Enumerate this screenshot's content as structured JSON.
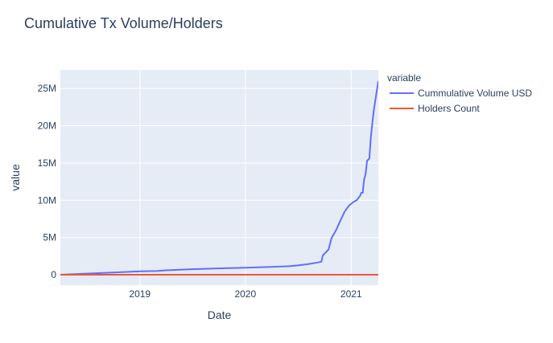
{
  "chart_data": {
    "type": "line",
    "title": "Cumulative Tx Volume/Holders",
    "xlabel": "Date",
    "ylabel": "value",
    "x_range": [
      "2018-04-01",
      "2021-04-05"
    ],
    "ylim": [
      -1400000,
      27500000
    ],
    "x_ticks": [
      {
        "date": "2019-01-01",
        "label": "2019"
      },
      {
        "date": "2020-01-01",
        "label": "2020"
      },
      {
        "date": "2021-01-01",
        "label": "2021"
      }
    ],
    "y_ticks": [
      {
        "value": 0,
        "label": "0"
      },
      {
        "value": 5000000,
        "label": "5M"
      },
      {
        "value": 10000000,
        "label": "10M"
      },
      {
        "value": 15000000,
        "label": "15M"
      },
      {
        "value": 20000000,
        "label": "20M"
      },
      {
        "value": 25000000,
        "label": "25M"
      }
    ],
    "grid": true,
    "legend": {
      "title": "variable",
      "placement": "right"
    },
    "series": [
      {
        "name": "Cummulative Volume USD",
        "color": "#636efa",
        "x": [
          "2018-04-01",
          "2018-07-01",
          "2018-10-01",
          "2019-01-01",
          "2019-03-01",
          "2019-04-01",
          "2019-07-01",
          "2019-10-01",
          "2020-01-01",
          "2020-04-01",
          "2020-06-01",
          "2020-07-01",
          "2020-08-01",
          "2020-09-01",
          "2020-09-20",
          "2020-09-25",
          "2020-10-15",
          "2020-10-25",
          "2020-11-10",
          "2020-11-25",
          "2020-12-10",
          "2020-12-25",
          "2021-01-10",
          "2021-01-20",
          "2021-02-01",
          "2021-02-05",
          "2021-02-10",
          "2021-02-15",
          "2021-02-20",
          "2021-02-25",
          "2021-03-05",
          "2021-03-10",
          "2021-03-15",
          "2021-03-20",
          "2021-03-28",
          "2021-04-05"
        ],
        "values": [
          0,
          150000,
          300000,
          450000,
          500000,
          600000,
          750000,
          850000,
          950000,
          1050000,
          1150000,
          1250000,
          1400000,
          1600000,
          1750000,
          2600000,
          3400000,
          4900000,
          6000000,
          7300000,
          8500000,
          9300000,
          9800000,
          10000000,
          10600000,
          11000000,
          11000000,
          12800000,
          13500000,
          15300000,
          15600000,
          18500000,
          20300000,
          22000000,
          24000000,
          26000000
        ]
      },
      {
        "name": "Holders Count",
        "color": "#ef553b",
        "x": [
          "2018-04-01",
          "2020-11-01",
          "2021-04-05"
        ],
        "values": [
          0,
          2000,
          5000
        ]
      }
    ]
  }
}
